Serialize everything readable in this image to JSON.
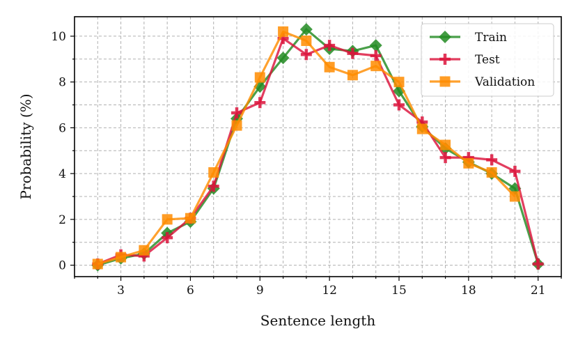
{
  "chart_data": {
    "type": "line",
    "title": "",
    "xlabel": "Sentence length",
    "ylabel": "Probability (%)",
    "xlim": [
      1.0,
      22.0
    ],
    "ylim": [
      -0.5,
      10.85
    ],
    "xticks": [
      3,
      6,
      9,
      12,
      15,
      18,
      21
    ],
    "yticks": [
      0,
      2,
      4,
      6,
      8,
      10
    ],
    "grid": true,
    "grid_minor_x": true,
    "legend_position": "top-right",
    "series": [
      {
        "name": "Train",
        "color": "#228b22",
        "marker": "diamond",
        "x": [
          2,
          3,
          4,
          5,
          6,
          7,
          8,
          9,
          10,
          11,
          12,
          13,
          14,
          15,
          16,
          17,
          18,
          19,
          20,
          21
        ],
        "values": [
          0.0,
          0.3,
          0.5,
          1.4,
          1.9,
          3.35,
          6.4,
          7.8,
          9.05,
          10.3,
          9.45,
          9.35,
          9.6,
          7.6,
          6.05,
          5.1,
          4.5,
          4.0,
          3.35,
          0.05
        ]
      },
      {
        "name": "Test",
        "color": "#dc143c",
        "marker": "plus",
        "x": [
          2,
          3,
          4,
          5,
          6,
          7,
          8,
          9,
          10,
          11,
          12,
          13,
          14,
          15,
          16,
          17,
          18,
          19,
          20,
          21
        ],
        "values": [
          0.05,
          0.45,
          0.4,
          1.2,
          2.05,
          3.45,
          6.65,
          7.1,
          9.9,
          9.2,
          9.6,
          9.25,
          9.15,
          7.0,
          6.25,
          4.7,
          4.7,
          4.6,
          4.1,
          0.05
        ]
      },
      {
        "name": "Validation",
        "color": "#ff8c00",
        "marker": "square",
        "x": [
          2,
          3,
          4,
          5,
          6,
          7,
          8,
          9,
          10,
          11,
          12,
          13,
          14,
          15,
          16,
          17,
          18,
          19,
          20
        ],
        "values": [
          0.05,
          0.35,
          0.65,
          2.0,
          2.05,
          4.05,
          6.1,
          8.2,
          10.2,
          9.8,
          8.65,
          8.3,
          8.7,
          8.0,
          5.95,
          5.25,
          4.45,
          4.05,
          3.0
        ]
      }
    ]
  }
}
